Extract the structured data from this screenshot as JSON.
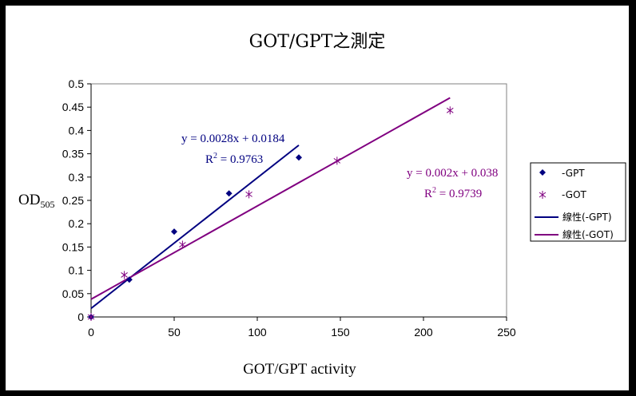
{
  "chart_data": {
    "type": "scatter",
    "title": "GOT/GPT之測定",
    "xlabel": "GOT/GPT activity",
    "ylabel_main": "OD",
    "ylabel_sub": "505",
    "xlim": [
      0,
      250
    ],
    "ylim": [
      0,
      0.5
    ],
    "x_ticks": [
      "0",
      "50",
      "100",
      "150",
      "200",
      "250"
    ],
    "y_ticks": [
      "0",
      "0.05",
      "0.1",
      "0.15",
      "0.2",
      "0.25",
      "0.3",
      "0.35",
      "0.4",
      "0.45",
      "0.5"
    ],
    "grid": false,
    "legend_position": "right",
    "series": [
      {
        "name": "-GPT",
        "marker": "diamond",
        "color": "#000080",
        "x": [
          0,
          23,
          50,
          83,
          125
        ],
        "y": [
          0,
          0.08,
          0.183,
          0.265,
          0.342
        ]
      },
      {
        "name": "-GOT",
        "marker": "asterisk",
        "color": "#800080",
        "x": [
          0,
          20,
          55,
          95,
          148,
          216
        ],
        "y": [
          0,
          0.09,
          0.155,
          0.263,
          0.335,
          0.443
        ]
      }
    ],
    "trendlines": [
      {
        "name": "線性(-GPT)",
        "color": "#000080",
        "slope": 0.0028,
        "intercept": 0.0184,
        "x_range": [
          0,
          125
        ],
        "equation": "y = 0.0028x + 0.0184",
        "r2_label": "R",
        "r2_value": " = 0.9763"
      },
      {
        "name": "線性(-GOT)",
        "color": "#800080",
        "slope": 0.002,
        "intercept": 0.038,
        "x_range": [
          0,
          216
        ],
        "equation": "y = 0.002x + 0.038",
        "r2_label": "R",
        "r2_value": " = 0.9739"
      }
    ],
    "legend": [
      "-GPT",
      "-GOT",
      "線性(-GPT)",
      "線性(-GOT)"
    ]
  }
}
